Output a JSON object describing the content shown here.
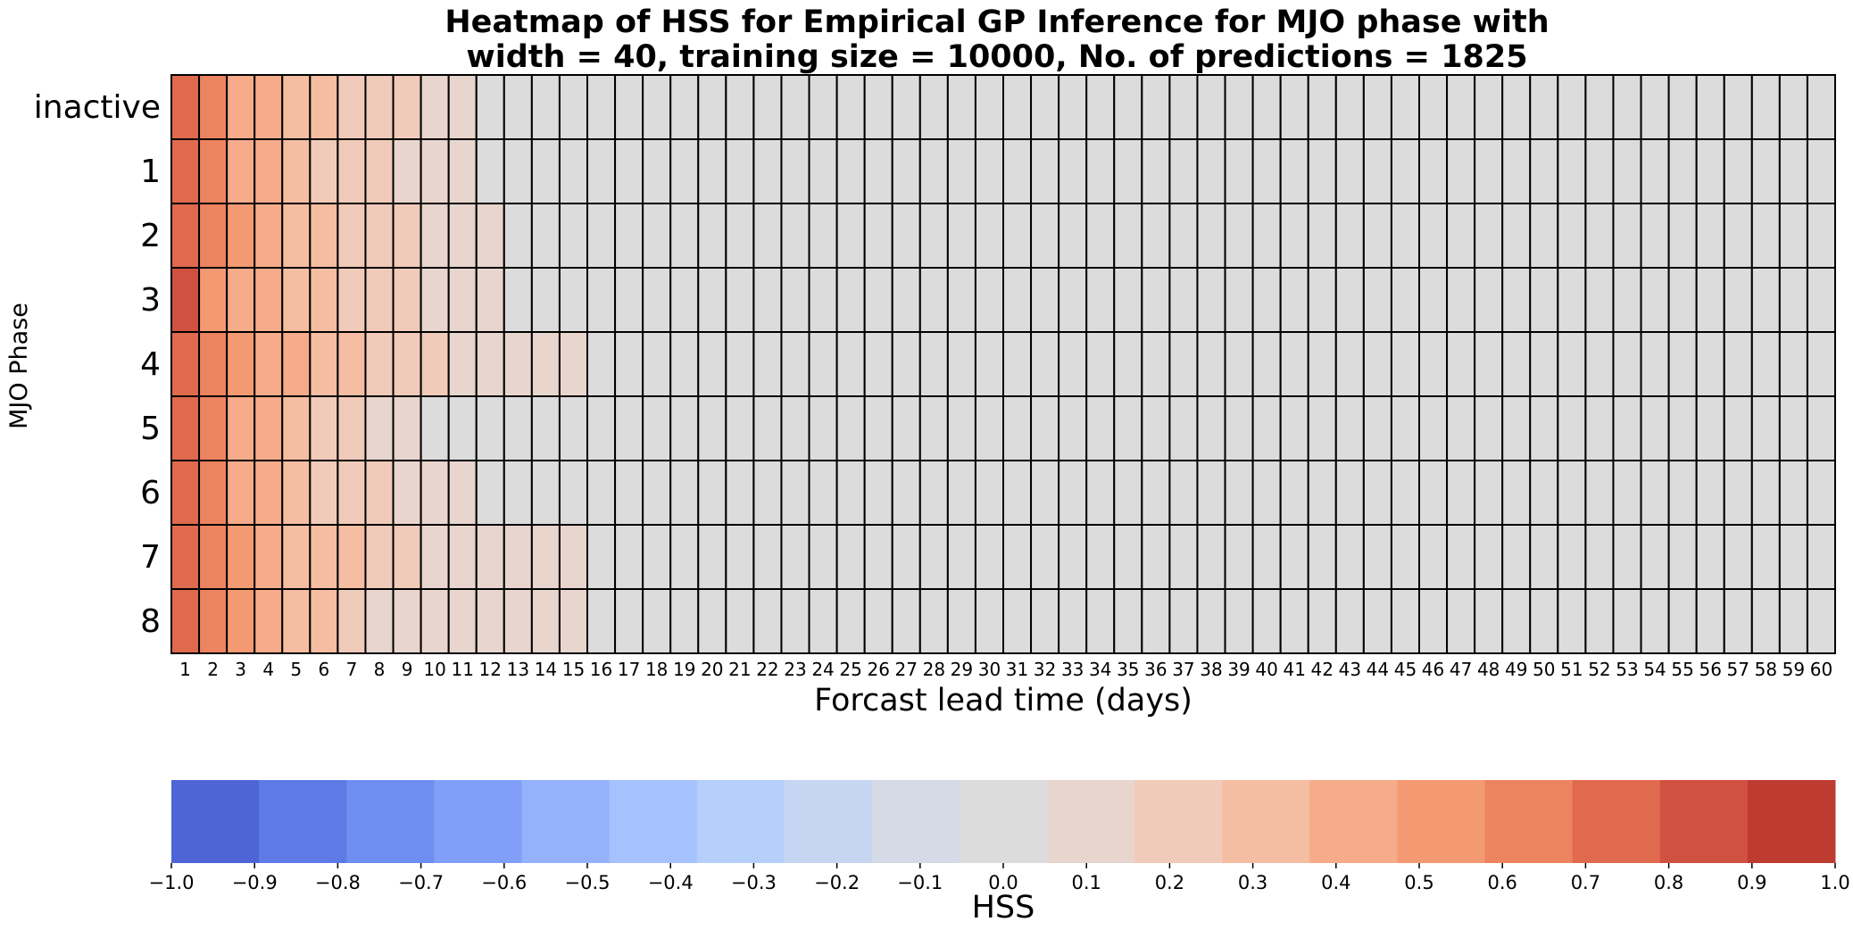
{
  "chart_data": {
    "type": "heatmap",
    "title_line1": "Heatmap of HSS for Empirical GP Inference for MJO phase with",
    "title_line2": "width = 40, training size = 10000, No. of predictions = 1825",
    "xlabel": "Forcast lead time (days)",
    "ylabel": "MJO Phase",
    "rows": [
      "inactive",
      "1",
      "2",
      "3",
      "4",
      "5",
      "6",
      "7",
      "8"
    ],
    "columns": [
      "1",
      "2",
      "3",
      "4",
      "5",
      "6",
      "7",
      "8",
      "9",
      "10",
      "11",
      "12",
      "13",
      "14",
      "15",
      "16",
      "17",
      "18",
      "19",
      "20",
      "21",
      "22",
      "23",
      "24",
      "25",
      "26",
      "27",
      "28",
      "29",
      "30",
      "31",
      "32",
      "33",
      "34",
      "35",
      "36",
      "37",
      "38",
      "39",
      "40",
      "41",
      "42",
      "43",
      "44",
      "45",
      "46",
      "47",
      "48",
      "49",
      "50",
      "51",
      "52",
      "53",
      "54",
      "55",
      "56",
      "57",
      "58",
      "59",
      "60"
    ],
    "values": [
      [
        0.75,
        0.6,
        0.45,
        0.42,
        0.35,
        0.3,
        0.25,
        0.18,
        0.18,
        0.15,
        0.12,
        0.05,
        0.05,
        0.05,
        0.05,
        0.05,
        0.05,
        0.05,
        0.05,
        0.05,
        0.05,
        0.05,
        0.05,
        0.05,
        0.05,
        -0.05,
        -0.05,
        -0.05,
        -0.05,
        0.05,
        0.05,
        0.05,
        0.05,
        0.05,
        0.05,
        0.05,
        0.05,
        0.05,
        0.05,
        0.05,
        0.05,
        0.05,
        0.05,
        0.05,
        0.05,
        0.05,
        0.05,
        0.05,
        0.05,
        0.05,
        0.05,
        0.05,
        0.05,
        0.05,
        0.05,
        0.05,
        0.05,
        0.05,
        0.05,
        0.05
      ],
      [
        0.78,
        0.65,
        0.45,
        0.42,
        0.3,
        0.25,
        0.22,
        0.18,
        0.15,
        0.15,
        0.12,
        0.05,
        0.05,
        0.05,
        0.05,
        0.05,
        0.05,
        -0.05,
        -0.05,
        -0.05,
        0.05,
        0.05,
        0.05,
        0.05,
        0.05,
        0.05,
        0.05,
        0.05,
        0.05,
        0.05,
        0.05,
        0.05,
        0.05,
        0.05,
        0.05,
        0.05,
        0.05,
        0.05,
        0.05,
        0.05,
        0.05,
        0.05,
        0.05,
        0.05,
        0.05,
        0.05,
        0.05,
        0.05,
        0.05,
        0.05,
        0.05,
        0.05,
        0.05,
        0.05,
        0.05,
        0.05,
        0.05,
        0.05,
        0.05,
        0.05
      ],
      [
        0.75,
        0.6,
        0.5,
        0.45,
        0.35,
        0.3,
        0.25,
        0.18,
        0.18,
        0.15,
        0.12,
        0.12,
        0.05,
        0.05,
        0.05,
        -0.05,
        0.05,
        0.05,
        0.05,
        0.05,
        0.05,
        -0.05,
        -0.05,
        -0.05,
        0.05,
        0.05,
        0.05,
        0.05,
        0.05,
        0.05,
        0.05,
        0.05,
        0.05,
        0.05,
        0.05,
        0.05,
        0.05,
        0.05,
        0.05,
        0.05,
        0.05,
        0.05,
        0.05,
        0.05,
        0.05,
        0.05,
        0.05,
        0.05,
        0.05,
        0.05,
        0.05,
        0.05,
        0.05,
        0.05,
        0.05,
        0.05,
        0.05,
        0.05,
        0.05,
        0.05
      ],
      [
        0.8,
        0.55,
        0.4,
        0.38,
        0.35,
        0.3,
        0.25,
        0.22,
        0.18,
        0.1,
        0.1,
        0.1,
        0.05,
        0.05,
        0.05,
        0.05,
        0.05,
        0.05,
        0.05,
        0.05,
        0.05,
        0.05,
        0.05,
        0.05,
        0.05,
        0.05,
        -0.05,
        0.05,
        0.05,
        0.05,
        0.05,
        0.05,
        0.05,
        0.05,
        0.05,
        0.05,
        0.05,
        0.05,
        0.05,
        0.05,
        0.05,
        0.05,
        0.05,
        0.05,
        0.05,
        0.05,
        0.05,
        0.05,
        0.05,
        0.05,
        0.05,
        0.05,
        0.05,
        0.05,
        0.05,
        0.05,
        0.05,
        0.05,
        0.05,
        0.05
      ],
      [
        0.75,
        0.6,
        0.5,
        0.45,
        0.4,
        0.35,
        0.3,
        0.25,
        0.22,
        0.18,
        0.15,
        0.15,
        0.15,
        0.15,
        0.12,
        0.05,
        0.05,
        -0.05,
        -0.05,
        -0.05,
        0.05,
        0.05,
        0.05,
        0.05,
        0.05,
        0.05,
        0.05,
        -0.05,
        -0.05,
        0.05,
        0.05,
        0.05,
        0.05,
        0.05,
        0.05,
        0.05,
        0.05,
        0.05,
        0.05,
        0.05,
        0.05,
        0.05,
        0.05,
        0.05,
        0.05,
        0.05,
        0.05,
        0.05,
        0.05,
        0.05,
        0.05,
        0.05,
        0.05,
        0.05,
        0.05,
        0.05,
        0.05,
        0.05,
        0.05,
        0.05
      ],
      [
        0.75,
        0.6,
        0.45,
        0.4,
        0.3,
        0.25,
        0.2,
        0.15,
        0.08,
        0.05,
        0.05,
        0.05,
        0.05,
        0.05,
        -0.05,
        -0.05,
        -0.05,
        -0.05,
        0.05,
        0.05,
        0.05,
        0.05,
        0.05,
        0.05,
        0.05,
        0.05,
        0.05,
        0.05,
        0.05,
        0.05,
        0.05,
        0.05,
        0.05,
        0.05,
        0.05,
        0.05,
        0.05,
        0.05,
        0.05,
        0.05,
        0.05,
        0.05,
        0.05,
        0.05,
        0.05,
        0.05,
        0.05,
        0.05,
        0.05,
        0.05,
        0.05,
        0.05,
        0.05,
        0.05,
        0.05,
        0.05,
        0.05,
        0.05,
        0.05,
        0.05
      ],
      [
        0.75,
        0.6,
        0.45,
        0.42,
        0.3,
        0.25,
        0.22,
        0.18,
        0.15,
        0.15,
        0.12,
        0.05,
        0.05,
        0.05,
        0.05,
        0.05,
        0.05,
        0.05,
        0.05,
        0.05,
        0.05,
        0.05,
        0.05,
        0.05,
        0.05,
        0.05,
        0.05,
        0.05,
        0.05,
        0.05,
        0.05,
        0.05,
        0.05,
        0.05,
        0.05,
        0.05,
        0.05,
        0.05,
        0.05,
        0.05,
        0.05,
        0.05,
        0.05,
        0.05,
        0.05,
        0.05,
        0.05,
        0.05,
        0.05,
        0.05,
        0.05,
        0.05,
        0.05,
        0.05,
        0.05,
        0.05,
        0.05,
        0.05,
        0.05,
        0.05
      ],
      [
        0.78,
        0.6,
        0.5,
        0.45,
        0.35,
        0.3,
        0.28,
        0.22,
        0.18,
        0.15,
        0.15,
        0.12,
        0.12,
        0.12,
        0.12,
        0.05,
        0.05,
        0.05,
        -0.05,
        0.05,
        0.05,
        0.05,
        0.05,
        0.05,
        0.05,
        0.05,
        0.05,
        0.05,
        0.05,
        0.05,
        0.05,
        0.05,
        0.05,
        0.05,
        0.05,
        0.05,
        0.05,
        0.05,
        0.05,
        0.05,
        0.05,
        0.05,
        0.05,
        0.05,
        0.05,
        0.05,
        0.05,
        0.05,
        0.05,
        0.05,
        0.05,
        0.05,
        0.05,
        0.05,
        0.05,
        0.05,
        0.05,
        0.05,
        0.05,
        0.05
      ],
      [
        0.75,
        0.65,
        0.55,
        0.45,
        0.35,
        0.3,
        0.25,
        0.15,
        0.15,
        0.15,
        0.12,
        0.12,
        0.12,
        0.12,
        0.12,
        0.05,
        0.05,
        -0.05,
        -0.05,
        -0.05,
        -0.05,
        0.05,
        0.05,
        0.05,
        0.05,
        0.05,
        0.05,
        0.05,
        0.05,
        0.05,
        0.05,
        0.05,
        0.05,
        0.05,
        0.05,
        0.05,
        0.05,
        0.05,
        0.05,
        0.05,
        0.05,
        0.05,
        0.05,
        0.05,
        0.05,
        0.05,
        0.05,
        0.05,
        0.05,
        0.05,
        0.05,
        0.05,
        0.05,
        0.05,
        0.05,
        0.05,
        0.05,
        0.05,
        0.05,
        0.05
      ]
    ],
    "colorbar": {
      "label": "HSS",
      "range": [
        -1.0,
        1.0
      ],
      "ticks": [
        "−1.0",
        "−0.9",
        "−0.8",
        "−0.7",
        "−0.6",
        "−0.5",
        "−0.4",
        "−0.3",
        "−0.2",
        "−0.1",
        "0.0",
        "0.1",
        "0.2",
        "0.3",
        "0.4",
        "0.5",
        "0.6",
        "0.7",
        "0.8",
        "0.9",
        "1.0"
      ],
      "colors": [
        "#4d65d5",
        "#5e7ae5",
        "#6f8ef1",
        "#819ff8",
        "#93b1fd",
        "#a5c1fe",
        "#b6cefa",
        "#c6d6f2",
        "#d4dbe6",
        "#dddcdc",
        "#e8d5cd",
        "#f0cbb9",
        "#f5bda2",
        "#f6ab8a",
        "#f39a73",
        "#ec845f",
        "#e06a4e",
        "#d0513f",
        "#be3b32"
      ]
    },
    "grid": true
  }
}
